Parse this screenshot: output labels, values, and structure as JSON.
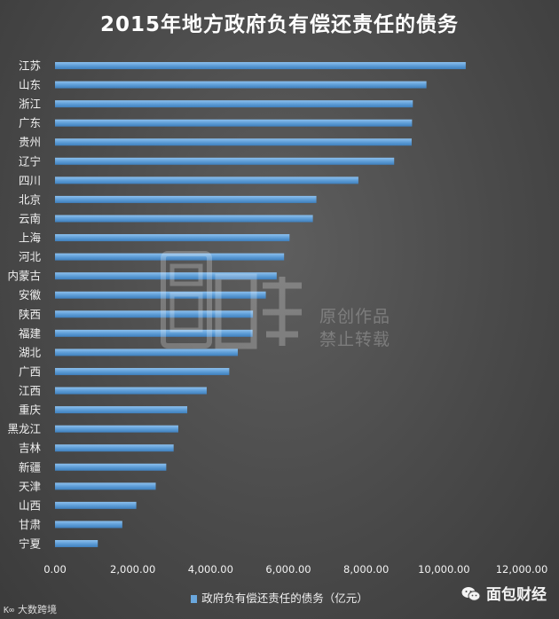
{
  "chart_data": {
    "type": "bar",
    "orientation": "horizontal",
    "title": "2015年地方政府负有偿还责任的债务",
    "categories": [
      "江苏",
      "山东",
      "浙江",
      "广东",
      "贵州",
      "辽宁",
      "四川",
      "北京",
      "云南",
      "上海",
      "河北",
      "内蒙古",
      "安徽",
      "陕西",
      "福建",
      "湖北",
      "广西",
      "江西",
      "重庆",
      "黑龙江",
      "吉林",
      "新疆",
      "天津",
      "山西",
      "甘肃",
      "宁夏"
    ],
    "series": [
      {
        "name": "政府负有偿还责任的债务（亿元）",
        "values": [
          10560,
          9550,
          9200,
          9180,
          9170,
          8720,
          7800,
          6720,
          6630,
          6030,
          5890,
          5700,
          5420,
          5090,
          5080,
          4700,
          4480,
          3900,
          3400,
          3170,
          3050,
          2860,
          2590,
          2090,
          1730,
          1100
        ]
      }
    ],
    "xlim": [
      0,
      12000
    ],
    "xticks": [
      0,
      2000,
      4000,
      6000,
      8000,
      10000,
      12000
    ],
    "xtick_labels": [
      "0.00",
      "2,000.00",
      "4,000.00",
      "6,000.00",
      "8,000.00",
      "10,000.00",
      "12,000.00"
    ],
    "xlabel": "",
    "ylabel": "",
    "grid": false,
    "legend_position": "bottom",
    "legend_label": "政府负有偿还责任的债务（亿元）",
    "bar_color": "#6aa7dd"
  },
  "watermark": {
    "center_text_line1": "原创作品",
    "center_text_line2": "禁止转载",
    "bottom_left": "大数跨境",
    "bottom_left_logo": "K∞",
    "bottom_right": "面包财经"
  }
}
